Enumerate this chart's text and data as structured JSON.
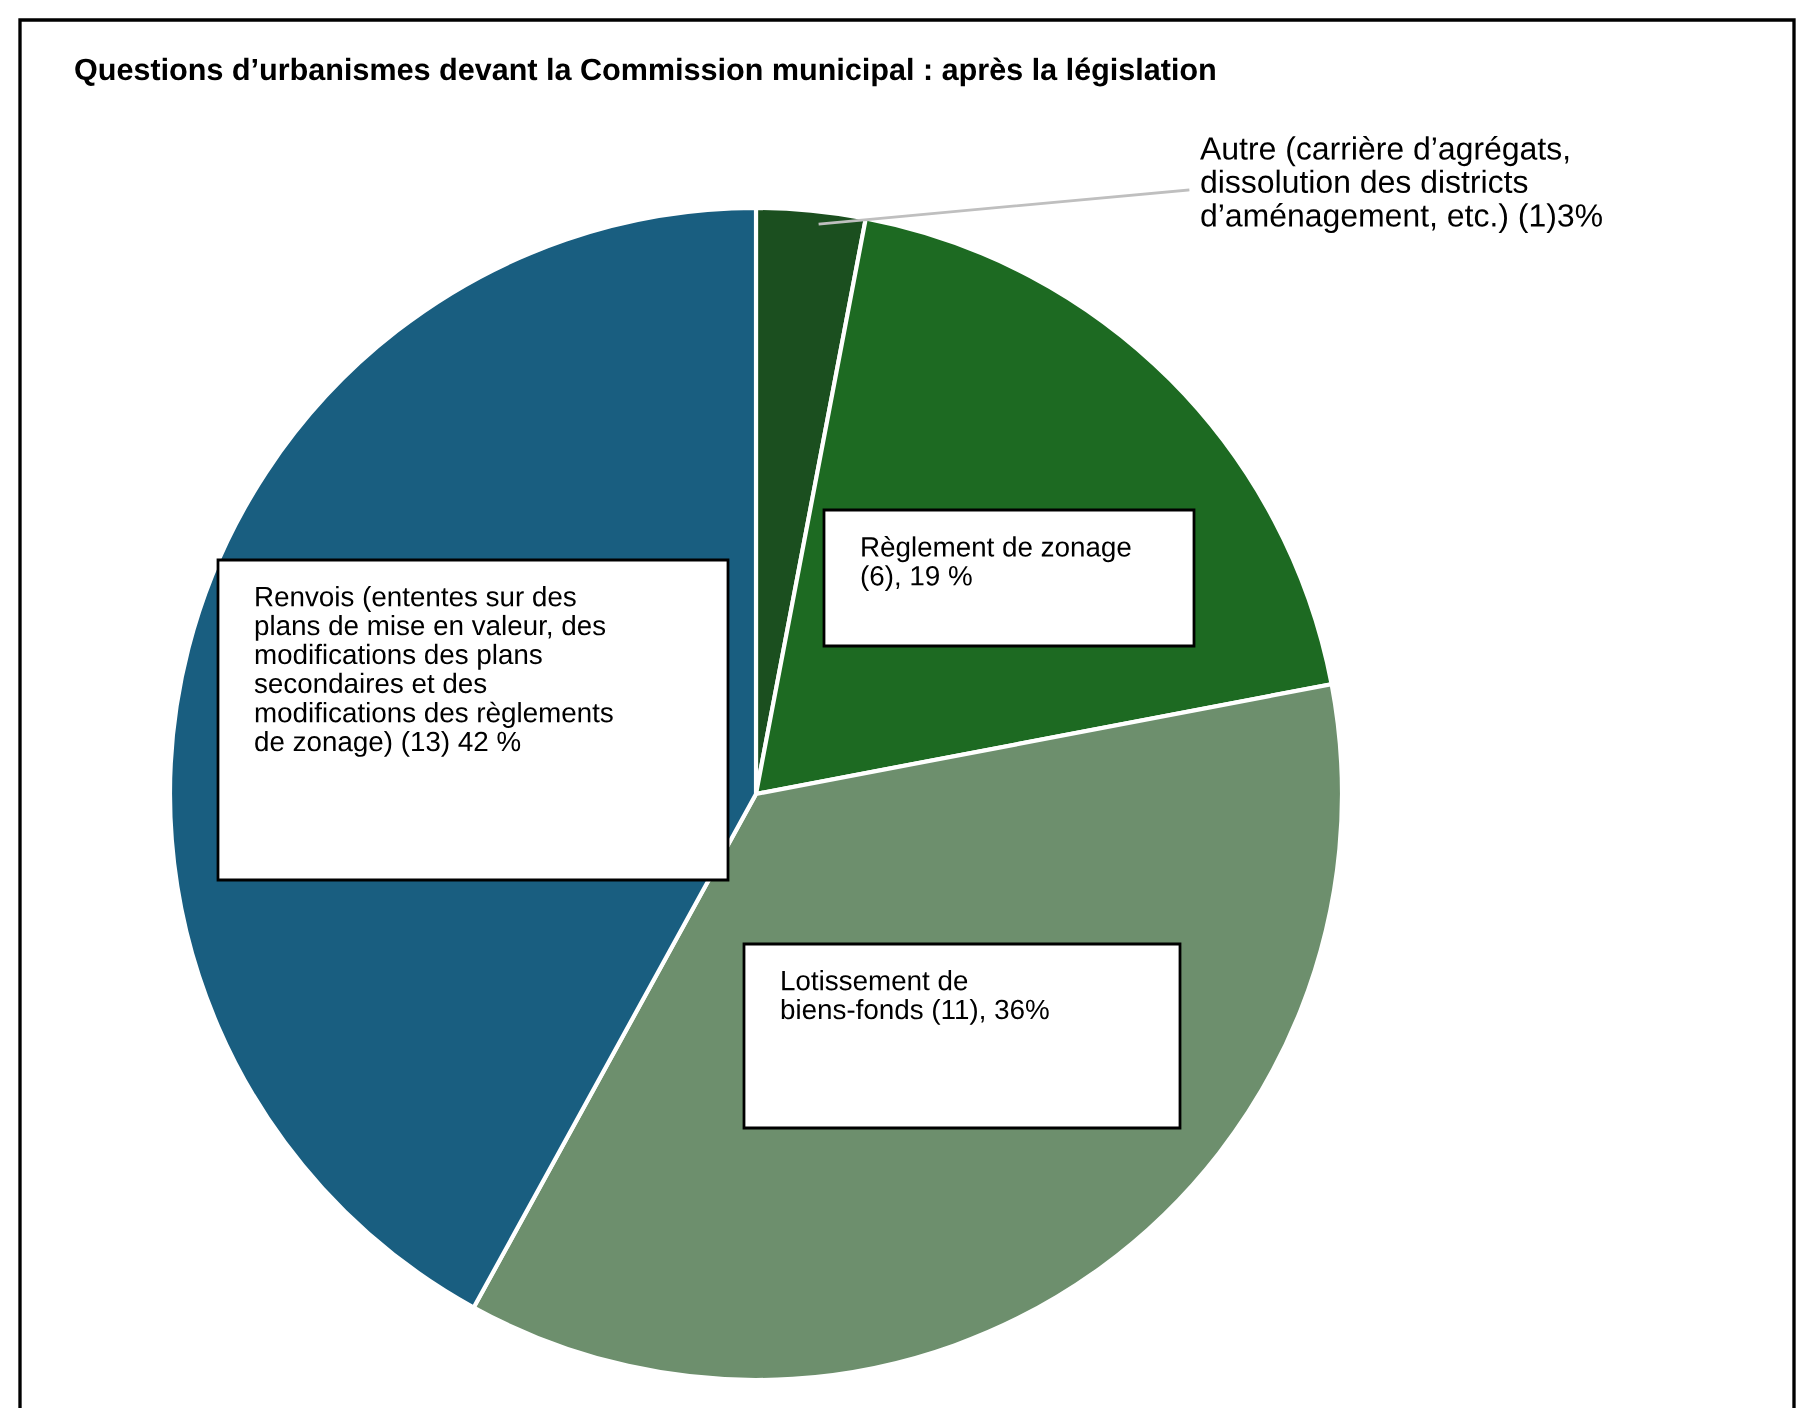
{
  "chart_data": {
    "type": "pie",
    "title": "Questions d’urbanismes devant la Commission municipal : après la législation",
    "categories": [
      "Autre (carrière d’agrégats,\ndissolution des districts\nd’aménagement, etc.) (1)3%",
      "Règlement de zonage\n(6), 19 %",
      "Lotissement de\nbiens-fonds (11), 36%",
      "Renvois (ententes sur des\nplans de mise en valeur, des\nmodifications des plans\nsecondaires et des\nmodifications des règlements\nde zonage) (13) 42 %"
    ],
    "values": [
      3,
      19,
      36,
      42
    ],
    "colors": [
      "#1b4f1f",
      "#1d6a22",
      "#6d8f6d",
      "#195e80"
    ]
  }
}
